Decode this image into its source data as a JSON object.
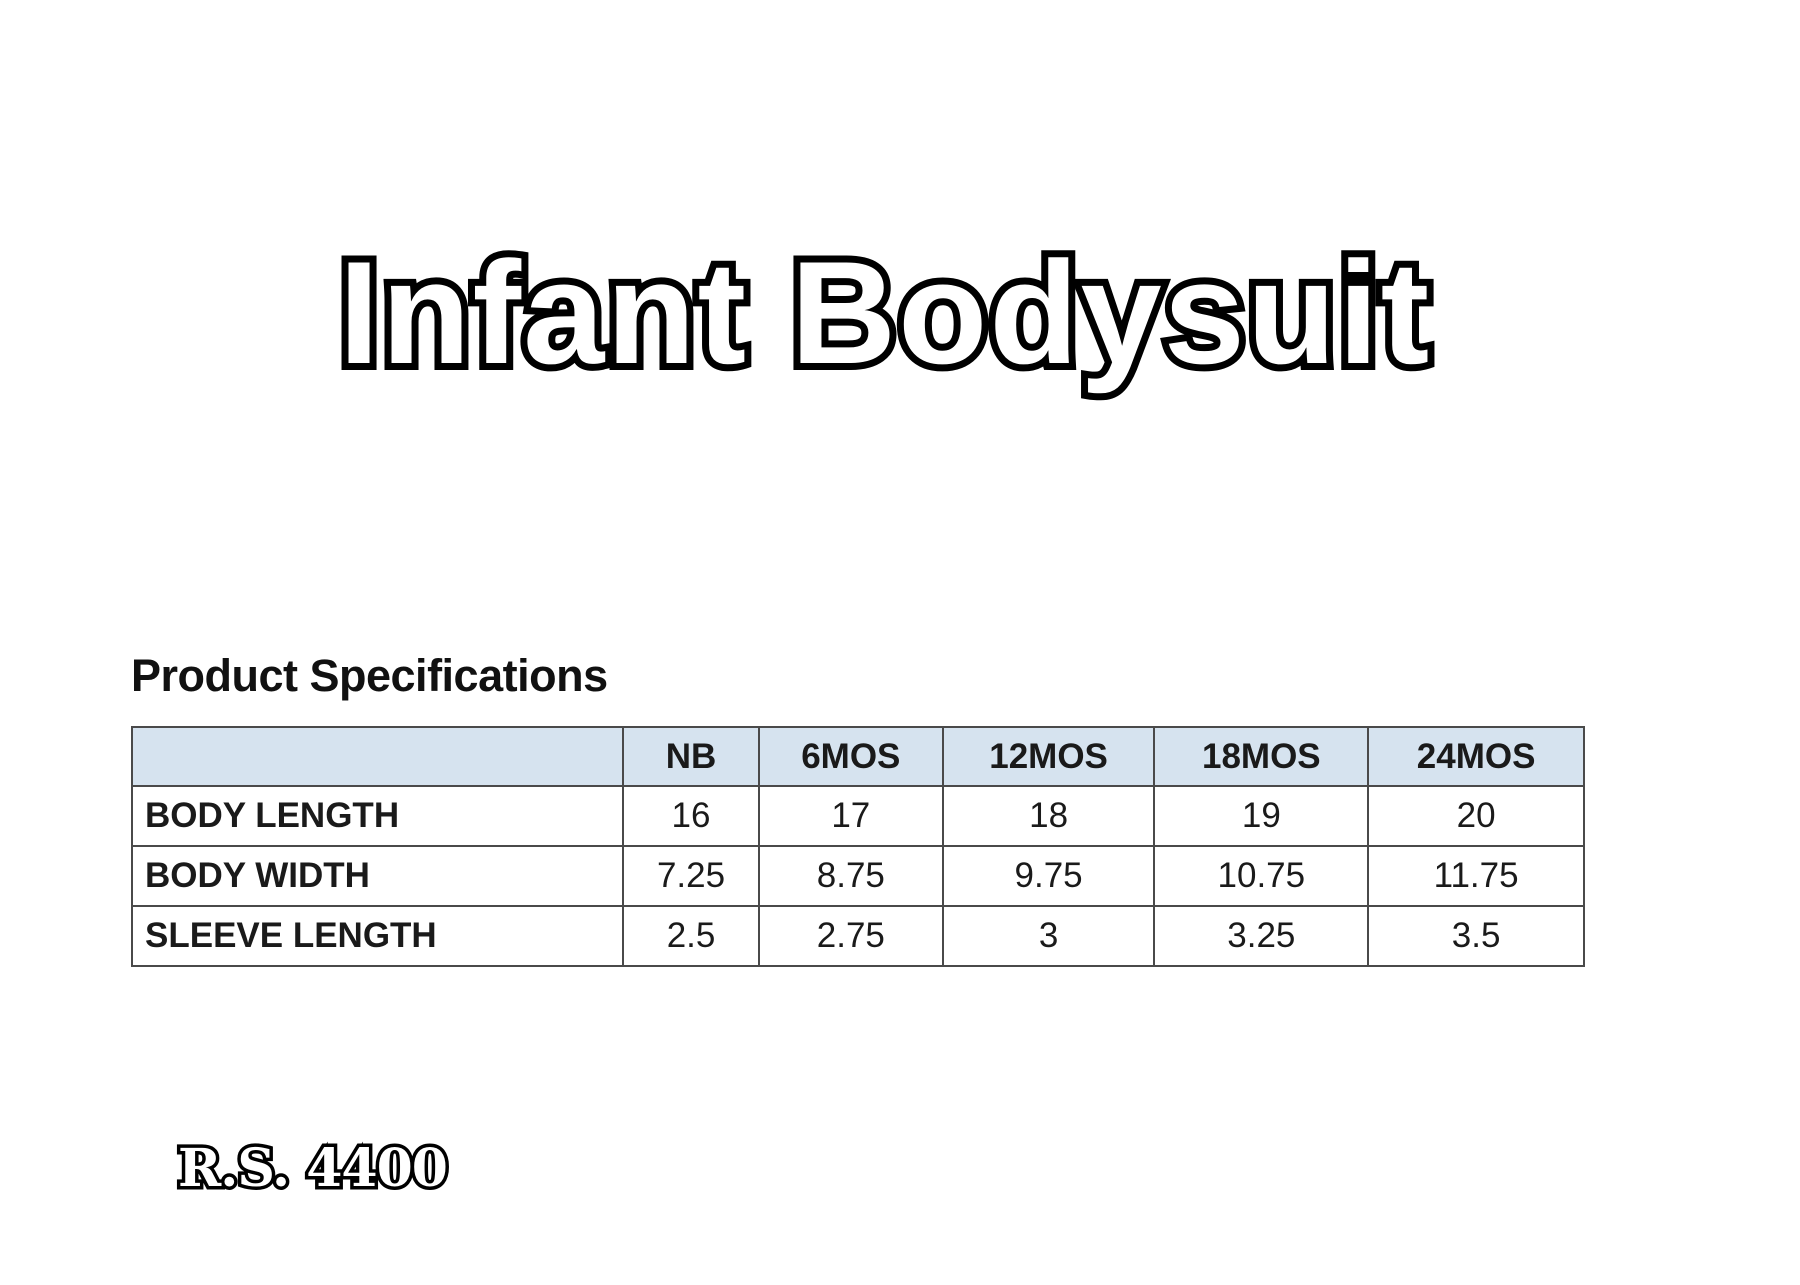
{
  "title": "Infant Bodysuit",
  "specs": {
    "heading": "Product Specifications",
    "header_color": "#d6e3ef",
    "columns": [
      "",
      "NB",
      "6MOS",
      "12MOS",
      "18MOS",
      "24MOS"
    ],
    "rows": [
      {
        "label": "BODY LENGTH",
        "values": [
          "16",
          "17",
          "18",
          "19",
          "20"
        ]
      },
      {
        "label": "BODY WIDTH",
        "values": [
          "7.25",
          "8.75",
          "9.75",
          "10.75",
          "11.75"
        ]
      },
      {
        "label": "SLEEVE LENGTH",
        "values": [
          "2.5",
          "2.75",
          "3",
          "3.25",
          "3.5"
        ]
      }
    ]
  },
  "price": "R.S. 4400"
}
